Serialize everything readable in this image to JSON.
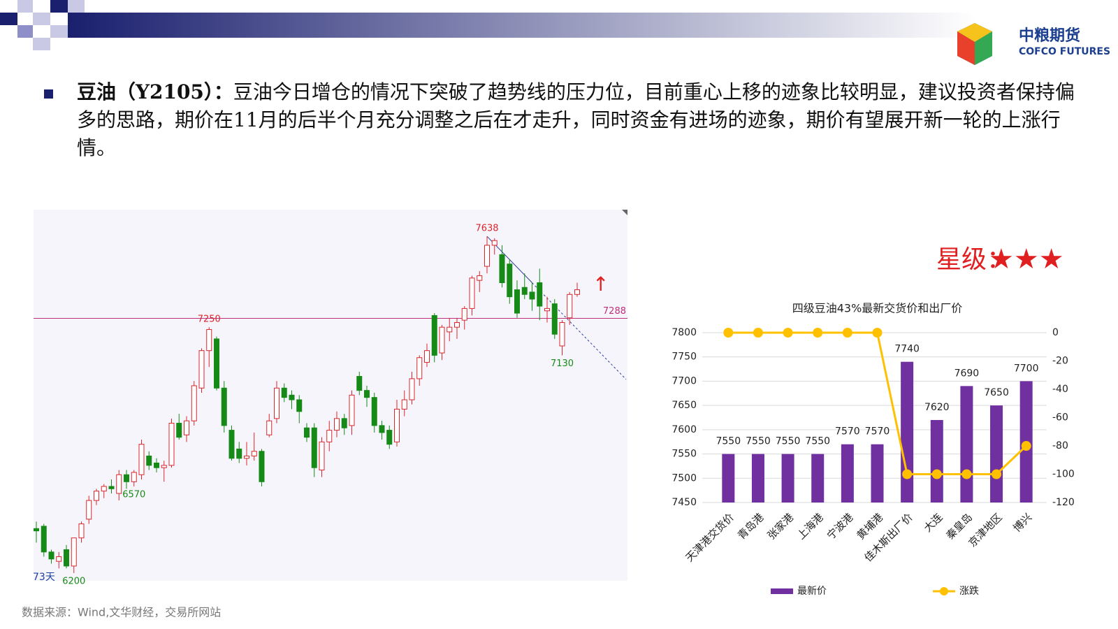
{
  "header": {
    "logo_cn": "中粮期货",
    "logo_en": "COFCO FUTURES"
  },
  "commentary": {
    "heading": "豆油（Y2105）：",
    "body": "豆油今日增仓的情况下突破了趋势线的压力位，目前重心上移的迹象比较明显，建议投资者保持偏多的思路，期价在11月的后半个月充分调整之后在才走升，同时资金有进场的迹象，期价有望展开新一轮的上涨行情。"
  },
  "rating": {
    "label": "星级：",
    "stars": "★★★"
  },
  "source": "数据来源：Wind,文华财经，交易所网站",
  "chart_data": [
    {
      "type": "candlestick",
      "up_color": "#d9262c",
      "down_color": "#168a16",
      "ylim": [
        6167,
        7752
      ],
      "candles": [
        [
          6390,
          6420,
          6330,
          6380
        ],
        [
          6400,
          6410,
          6270,
          6290
        ],
        [
          6290,
          6300,
          6240,
          6260
        ],
        [
          6250,
          6290,
          6220,
          6270
        ],
        [
          6300,
          6320,
          6220,
          6230
        ],
        [
          6230,
          6350,
          6200,
          6350
        ],
        [
          6350,
          6420,
          6330,
          6410
        ],
        [
          6430,
          6530,
          6410,
          6510
        ],
        [
          6510,
          6560,
          6490,
          6550
        ],
        [
          6550,
          6580,
          6520,
          6570
        ],
        [
          6570,
          6600,
          6540,
          6560
        ],
        [
          6540,
          6640,
          6510,
          6620
        ],
        [
          6620,
          6640,
          6560,
          6590
        ],
        [
          6590,
          6640,
          6570,
          6630
        ],
        [
          6620,
          6770,
          6600,
          6750
        ],
        [
          6700,
          6720,
          6640,
          6660
        ],
        [
          6670,
          6690,
          6630,
          6650
        ],
        [
          6650,
          6680,
          6590,
          6660
        ],
        [
          6660,
          6860,
          6650,
          6840
        ],
        [
          6840,
          6880,
          6770,
          6780
        ],
        [
          6790,
          6870,
          6760,
          6850
        ],
        [
          6850,
          7020,
          6830,
          7000
        ],
        [
          6990,
          7160,
          6970,
          7150
        ],
        [
          7150,
          7250,
          7080,
          7240
        ],
        [
          7200,
          7210,
          6980,
          6990
        ],
        [
          6990,
          7020,
          6800,
          6830
        ],
        [
          6810,
          6830,
          6680,
          6690
        ],
        [
          6730,
          6760,
          6670,
          6690
        ],
        [
          6690,
          6760,
          6660,
          6700
        ],
        [
          6700,
          6800,
          6680,
          6720
        ],
        [
          6720,
          6730,
          6570,
          6590
        ],
        [
          6790,
          6880,
          6780,
          6850
        ],
        [
          6860,
          7020,
          6840,
          6990
        ],
        [
          6990,
          7010,
          6930,
          6950
        ],
        [
          6960,
          6980,
          6900,
          6940
        ],
        [
          6940,
          6960,
          6840,
          6890
        ],
        [
          6820,
          6840,
          6760,
          6780
        ],
        [
          6820,
          6840,
          6610,
          6650
        ],
        [
          6640,
          6780,
          6610,
          6760
        ],
        [
          6760,
          6850,
          6720,
          6810
        ],
        [
          6810,
          6890,
          6780,
          6860
        ],
        [
          6860,
          6880,
          6790,
          6820
        ],
        [
          6830,
          6980,
          6790,
          6960
        ],
        [
          7040,
          7060,
          6960,
          6980
        ],
        [
          6980,
          7000,
          6910,
          6950
        ],
        [
          6950,
          6970,
          6800,
          6830
        ],
        [
          6830,
          6850,
          6770,
          6800
        ],
        [
          6810,
          6830,
          6730,
          6750
        ],
        [
          6760,
          6940,
          6740,
          6900
        ],
        [
          6900,
          6980,
          6870,
          6940
        ],
        [
          6940,
          7060,
          6920,
          7030
        ],
        [
          7030,
          7130,
          7000,
          7120
        ],
        [
          7100,
          7180,
          7080,
          7150
        ],
        [
          7300,
          7310,
          7100,
          7130
        ],
        [
          7140,
          7260,
          7110,
          7250
        ],
        [
          7230,
          7290,
          7190,
          7250
        ],
        [
          7250,
          7290,
          7200,
          7270
        ],
        [
          7280,
          7340,
          7240,
          7330
        ],
        [
          7330,
          7470,
          7300,
          7460
        ],
        [
          7450,
          7490,
          7400,
          7470
        ],
        [
          7510,
          7638,
          7480,
          7600
        ],
        [
          7600,
          7630,
          7560,
          7620
        ],
        [
          7560,
          7600,
          7420,
          7440
        ],
        [
          7520,
          7540,
          7350,
          7380
        ],
        [
          7410,
          7450,
          7290,
          7310
        ],
        [
          7420,
          7480,
          7370,
          7390
        ],
        [
          7400,
          7440,
          7320,
          7370
        ],
        [
          7440,
          7500,
          7280,
          7340
        ],
        [
          7320,
          7380,
          7270,
          7330
        ],
        [
          7350,
          7370,
          7200,
          7220
        ],
        [
          7170,
          7280,
          7130,
          7270
        ],
        [
          7290,
          7400,
          7260,
          7390
        ],
        [
          7390,
          7440,
          7380,
          7410
        ]
      ],
      "labeled_highs": [
        7638,
        7250
      ],
      "labeled_lows": [
        6570,
        7130,
        6200
      ],
      "level": 7288,
      "level_color": "#c0307a",
      "period_label": "73天"
    },
    {
      "type": "bar",
      "title": "四级豆油43%最新交货价和出厂价",
      "legend": "bottom",
      "grid": true,
      "categories": [
        "天津港交货价",
        "青岛港",
        "张家港",
        "上海港",
        "宁波港",
        "黄埔港",
        "佳木斯出厂价",
        "大连",
        "秦皇岛",
        "京津地区",
        "博兴"
      ],
      "series": [
        {
          "name": "最新价",
          "type": "bar",
          "color": "#7030a0",
          "values": [
            7550,
            7550,
            7550,
            7550,
            7570,
            7570,
            7740,
            7620,
            7690,
            7650,
            7700
          ]
        },
        {
          "name": "涨跌",
          "type": "line",
          "axis": "y2",
          "color": "#ffc000",
          "values": [
            0,
            0,
            0,
            0,
            0,
            0,
            -100,
            -100,
            -100,
            -100,
            -80
          ]
        }
      ],
      "ylim": [
        7450,
        7800
      ],
      "yticks": [
        7450,
        7500,
        7550,
        7600,
        7650,
        7700,
        7750,
        7800
      ],
      "y2lim": [
        -120,
        0
      ],
      "y2ticks": [
        0,
        -20,
        -40,
        -60,
        -80,
        -100,
        -120
      ]
    }
  ]
}
